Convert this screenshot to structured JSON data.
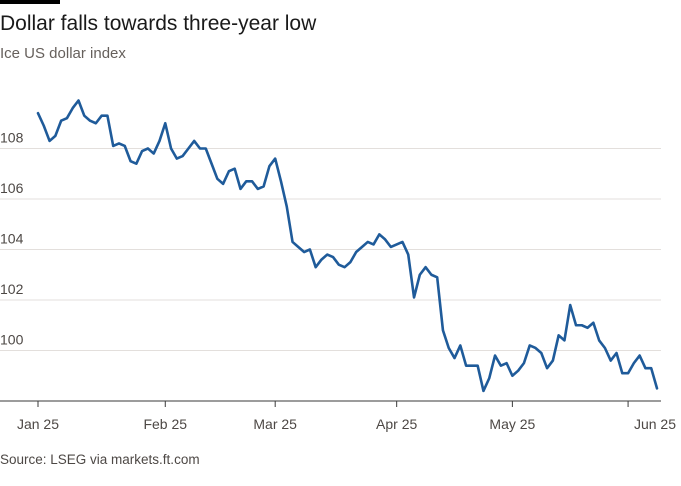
{
  "header": {
    "title": "Dollar falls towards three-year low",
    "subtitle": "Ice US dollar index"
  },
  "footer": {
    "source": "Source: LSEG via markets.ft.com"
  },
  "colors": {
    "line": "#1f5b9a",
    "grid": "#e3dfdc",
    "axis": "#3a3a3a",
    "text": "#4d4845"
  },
  "chart_data": {
    "type": "line",
    "ylim": [
      98,
      110
    ],
    "grid": true,
    "y_ticks": [
      100,
      102,
      104,
      106,
      108
    ],
    "x_ticks": [
      {
        "label": "Jan 25",
        "index": 0
      },
      {
        "label": "Feb 25",
        "index": 22
      },
      {
        "label": "Mar 25",
        "index": 41
      },
      {
        "label": "Apr 25",
        "index": 62
      },
      {
        "label": "May 25",
        "index": 82
      },
      {
        "label": "Jun 25",
        "index": 102
      }
    ],
    "series": [
      {
        "values": [
          109.4,
          108.9,
          108.3,
          108.5,
          109.1,
          109.2,
          109.6,
          109.9,
          109.3,
          109.1,
          109.0,
          109.3,
          109.3,
          108.1,
          108.2,
          108.1,
          107.5,
          107.4,
          107.9,
          108.0,
          107.8,
          108.3,
          109.0,
          108.0,
          107.6,
          107.7,
          108.0,
          108.3,
          108.0,
          108.0,
          107.4,
          106.8,
          106.6,
          107.1,
          107.2,
          106.4,
          106.7,
          106.7,
          106.4,
          106.5,
          107.3,
          107.6,
          106.7,
          105.7,
          104.3,
          104.1,
          103.9,
          104.0,
          103.3,
          103.6,
          103.8,
          103.7,
          103.4,
          103.3,
          103.5,
          103.9,
          104.1,
          104.3,
          104.2,
          104.6,
          104.4,
          104.1,
          104.2,
          104.3,
          103.8,
          102.1,
          103.0,
          103.3,
          103.0,
          102.9,
          100.8,
          100.1,
          99.7,
          100.2,
          99.4,
          99.4,
          99.4,
          98.4,
          98.9,
          99.8,
          99.4,
          99.5,
          99.0,
          99.2,
          99.5,
          100.2,
          100.1,
          99.9,
          99.3,
          99.6,
          100.6,
          100.4,
          101.8,
          101.0,
          101.0,
          100.9,
          101.1,
          100.4,
          100.1,
          99.6,
          99.9,
          99.1,
          99.1,
          99.5,
          99.8,
          99.3,
          99.3,
          98.5
        ]
      }
    ]
  }
}
